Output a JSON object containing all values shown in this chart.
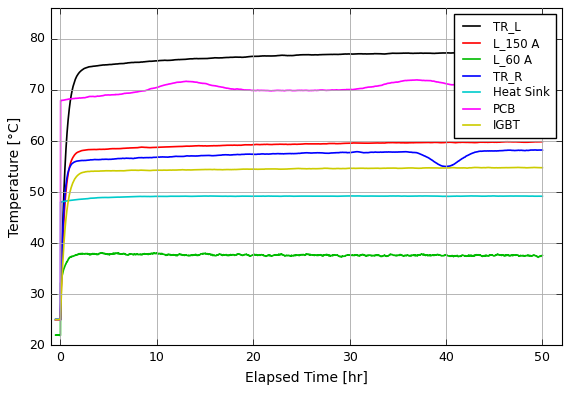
{
  "title": "",
  "xlabel": "Elapsed Time [hr]",
  "ylabel": "Temperature [°C]",
  "xlim": [
    -1,
    52
  ],
  "ylim": [
    20,
    86
  ],
  "yticks": [
    20,
    30,
    40,
    50,
    60,
    70,
    80
  ],
  "xticks": [
    0,
    10,
    20,
    30,
    40,
    50
  ],
  "grid": true,
  "legend_entries": [
    "TR_L",
    "L_150 A",
    "L_60 A",
    "TR_R",
    "Heat Sink",
    "PCB",
    "IGBT"
  ],
  "line_colors": [
    "#000000",
    "#ff0000",
    "#00bb00",
    "#0000ff",
    "#00cccc",
    "#ff00ff",
    "#cccc00"
  ],
  "line_widths": [
    1.2,
    1.2,
    1.2,
    1.2,
    1.2,
    1.2,
    1.2
  ],
  "figsize": [
    5.7,
    3.93
  ],
  "dpi": 100,
  "label_fontsize": 10,
  "tick_fontsize": 9,
  "legend_fontsize": 8.5
}
